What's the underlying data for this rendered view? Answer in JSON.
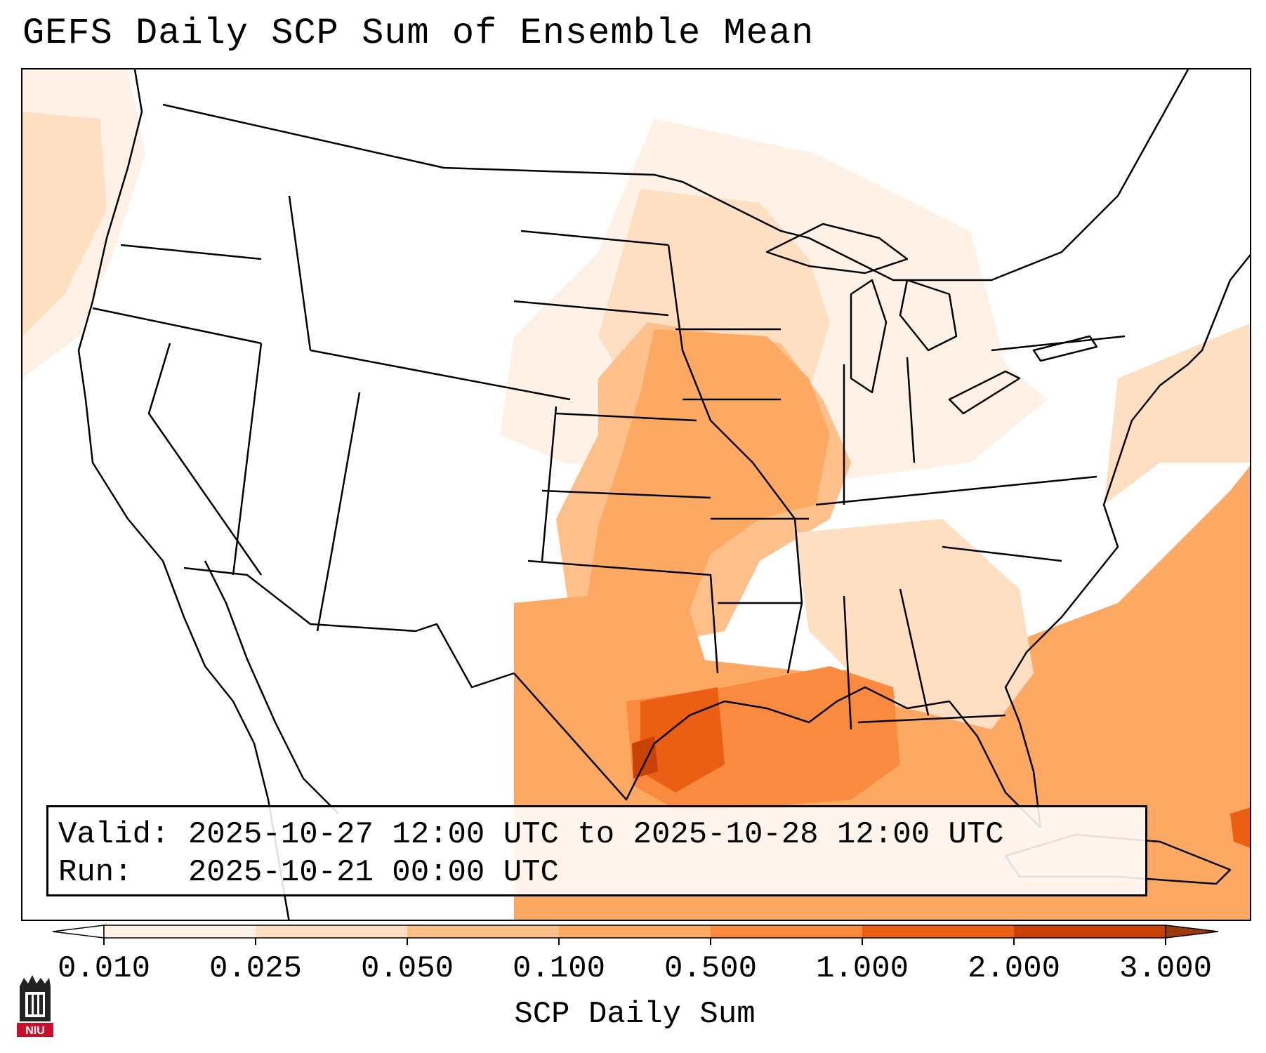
{
  "title": "GEFS Daily SCP Sum of Ensemble Mean",
  "info": {
    "valid_label": "Valid:",
    "valid_value": "2025-10-27 12:00 UTC to 2025-10-28 12:00 UTC",
    "run_label": "Run:",
    "run_value": "2025-10-21 00:00 UTC"
  },
  "colorbar": {
    "label": "SCP Daily Sum",
    "ticks": [
      "0.010",
      "0.025",
      "0.050",
      "0.100",
      "0.500",
      "1.000",
      "2.000",
      "3.000"
    ],
    "colors": [
      "#fff1e6",
      "#fedfc2",
      "#fdc08b",
      "#fda964",
      "#f98a3f",
      "#ea5f14",
      "#c84208"
    ],
    "extend": "both"
  },
  "map": {
    "region": "CONUS",
    "shading_colors": {
      "very_light": "#fff1e6",
      "light": "#fedfc2",
      "medium": "#fdc08b",
      "strong": "#fda964",
      "stronger": "#f98a3f",
      "max": "#ea5f14",
      "peak": "#c84208"
    }
  },
  "logo": {
    "text": "NIU",
    "icon": "niu-logo-icon",
    "color": "#c8102e"
  }
}
